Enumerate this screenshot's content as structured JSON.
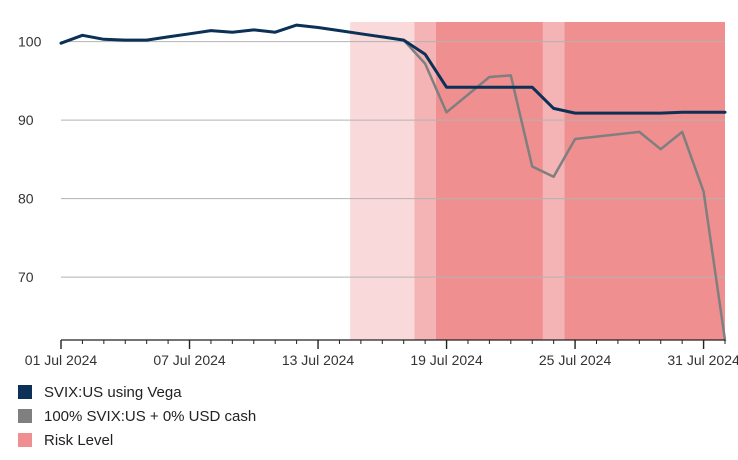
{
  "chart_data": {
    "type": "line",
    "x_ticks": [
      "01 Jul 2024",
      "07 Jul 2024",
      "13 Jul 2024",
      "19 Jul 2024",
      "25 Jul 2024",
      "31 Jul 2024"
    ],
    "y_ticks": [
      100,
      90,
      80,
      70
    ],
    "xlim": [
      "2024-07-01",
      "2024-08-01"
    ],
    "ylim": [
      62,
      102.5
    ],
    "grid": "horizontal",
    "legend_position": "bottom-left",
    "series": [
      {
        "name": "SVIX:US using Vega",
        "color": "#0b3157",
        "points": [
          [
            "2024-07-01",
            99.8
          ],
          [
            "2024-07-02",
            100.8
          ],
          [
            "2024-07-03",
            100.3
          ],
          [
            "2024-07-04",
            100.2
          ],
          [
            "2024-07-05",
            100.2
          ],
          [
            "2024-07-06",
            100.6
          ],
          [
            "2024-07-07",
            101.0
          ],
          [
            "2024-07-08",
            101.4
          ],
          [
            "2024-07-09",
            101.2
          ],
          [
            "2024-07-10",
            101.5
          ],
          [
            "2024-07-11",
            101.2
          ],
          [
            "2024-07-12",
            102.1
          ],
          [
            "2024-07-13",
            101.8
          ],
          [
            "2024-07-14",
            101.4
          ],
          [
            "2024-07-15",
            101.0
          ],
          [
            "2024-07-16",
            100.6
          ],
          [
            "2024-07-17",
            100.2
          ],
          [
            "2024-07-18",
            98.4
          ],
          [
            "2024-07-19",
            94.2
          ],
          [
            "2024-07-20",
            94.2
          ],
          [
            "2024-07-21",
            94.2
          ],
          [
            "2024-07-22",
            94.2
          ],
          [
            "2024-07-23",
            94.2
          ],
          [
            "2024-07-24",
            91.5
          ],
          [
            "2024-07-25",
            90.9
          ],
          [
            "2024-07-26",
            90.9
          ],
          [
            "2024-07-27",
            90.9
          ],
          [
            "2024-07-28",
            90.9
          ],
          [
            "2024-07-29",
            90.9
          ],
          [
            "2024-07-30",
            91.0
          ],
          [
            "2024-07-31",
            91.0
          ],
          [
            "2024-08-01",
            91.0
          ]
        ]
      },
      {
        "name": "100% SVIX:US + 0% USD cash",
        "color": "#7f7f7f",
        "points": [
          [
            "2024-07-01",
            99.8
          ],
          [
            "2024-07-02",
            100.8
          ],
          [
            "2024-07-03",
            100.3
          ],
          [
            "2024-07-04",
            100.2
          ],
          [
            "2024-07-05",
            100.2
          ],
          [
            "2024-07-06",
            100.6
          ],
          [
            "2024-07-07",
            101.0
          ],
          [
            "2024-07-08",
            101.4
          ],
          [
            "2024-07-09",
            101.2
          ],
          [
            "2024-07-10",
            101.5
          ],
          [
            "2024-07-11",
            101.2
          ],
          [
            "2024-07-12",
            102.1
          ],
          [
            "2024-07-13",
            101.8
          ],
          [
            "2024-07-14",
            101.4
          ],
          [
            "2024-07-15",
            101.0
          ],
          [
            "2024-07-16",
            100.6
          ],
          [
            "2024-07-17",
            100.2
          ],
          [
            "2024-07-18",
            97.2
          ],
          [
            "2024-07-19",
            91.0
          ],
          [
            "2024-07-21",
            95.5
          ],
          [
            "2024-07-22",
            95.7
          ],
          [
            "2024-07-23",
            84.1
          ],
          [
            "2024-07-24",
            82.8
          ],
          [
            "2024-07-25",
            87.6
          ],
          [
            "2024-07-28",
            88.5
          ],
          [
            "2024-07-29",
            86.3
          ],
          [
            "2024-07-30",
            88.5
          ],
          [
            "2024-07-31",
            80.9
          ],
          [
            "2024-08-01",
            62.0
          ]
        ]
      }
    ],
    "risk_bands": {
      "name": "Risk Level",
      "color": "#f08f8f",
      "bands": [
        {
          "start": "2024-07-15",
          "end": "2024-07-17",
          "level": 1
        },
        {
          "start": "2024-07-18",
          "end": "2024-07-18",
          "level": 2
        },
        {
          "start": "2024-07-19",
          "end": "2024-07-23",
          "level": 3
        },
        {
          "start": "2024-07-24",
          "end": "2024-07-24",
          "level": 2
        },
        {
          "start": "2024-07-25",
          "end": "2024-08-01",
          "level": 3
        }
      ],
      "level_colors": {
        "1": "#f9d9da",
        "2": "#f4b3b4",
        "3": "#f08f8f"
      }
    },
    "legend": [
      {
        "label": "SVIX:US using Vega",
        "color": "#0b3157"
      },
      {
        "label": "100% SVIX:US + 0% USD cash",
        "color": "#7f7f7f"
      },
      {
        "label": "Risk Level",
        "color": "#f08f8f"
      }
    ]
  }
}
